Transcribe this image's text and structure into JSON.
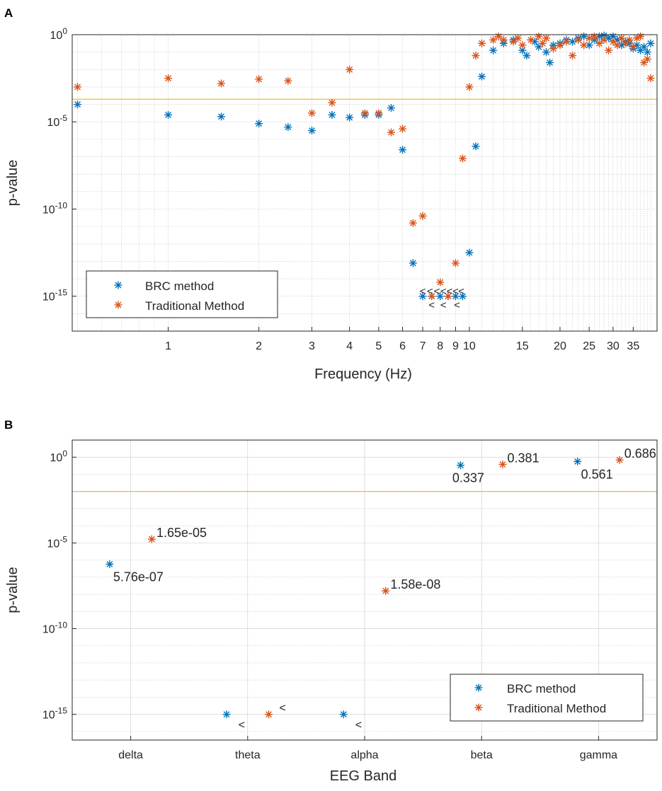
{
  "panel_labels": {
    "a": "A",
    "b": "B"
  },
  "colors": {
    "brc": "#0072BD",
    "traditional": "#D95319",
    "threshold": "#EDB120",
    "axis": "#262626",
    "grid": "#c8c8c8"
  },
  "legend_marker": "*",
  "chart_data": [
    {
      "id": "A",
      "type": "scatter",
      "xscale": "log",
      "yscale": "log",
      "xlim": [
        0.48,
        42
      ],
      "ylim_exp": [
        -17,
        0
      ],
      "grid": true,
      "xlabel": "Frequency (Hz)",
      "ylabel": "p-value",
      "x_ticks": [
        1,
        2,
        3,
        4,
        5,
        6,
        7,
        8,
        9,
        10,
        15,
        20,
        25,
        30,
        35
      ],
      "x_tick_labels": [
        "1",
        "2",
        "3",
        "4",
        "5",
        "6",
        "7",
        "8",
        "9",
        "10",
        "15",
        "20",
        "25",
        "30",
        "35"
      ],
      "y_ticks": [
        {
          "exp": 0,
          "base": "10",
          "sup": "0"
        },
        {
          "exp": -5,
          "base": "10",
          "sup": "-5"
        },
        {
          "exp": -10,
          "base": "10",
          "sup": "-10"
        },
        {
          "exp": -15,
          "base": "10",
          "sup": "-15"
        }
      ],
      "threshold_exp": -3.7,
      "legend": {
        "position": "bottom-left",
        "entries": [
          "BRC method",
          "Traditional Method"
        ]
      },
      "series": [
        {
          "name": "BRC method",
          "points": [
            [
              0.5,
              -4.0
            ],
            [
              1.0,
              -4.6
            ],
            [
              1.5,
              -4.7
            ],
            [
              2.0,
              -5.1
            ],
            [
              2.5,
              -5.3
            ],
            [
              3.0,
              -5.5
            ],
            [
              3.5,
              -4.6
            ],
            [
              4.0,
              -4.75
            ],
            [
              4.5,
              -4.6
            ],
            [
              5.0,
              -4.6
            ],
            [
              5.5,
              -4.2
            ],
            [
              6.0,
              -6.6
            ],
            [
              6.5,
              -13.1
            ],
            [
              7.0,
              -15.0
            ],
            [
              7.5,
              -15.0
            ],
            [
              8.0,
              -15.0
            ],
            [
              8.5,
              -15.0
            ],
            [
              9.0,
              -15.0
            ],
            [
              9.5,
              -15.0
            ],
            [
              10.0,
              -12.5
            ],
            [
              10.5,
              -6.4
            ],
            [
              11.0,
              -2.4
            ],
            [
              12.0,
              -0.9
            ],
            [
              13.0,
              -0.5
            ],
            [
              14.0,
              -0.3
            ],
            [
              15.0,
              -0.9
            ],
            [
              15.5,
              -1.2
            ],
            [
              16.5,
              -0.4
            ],
            [
              17.0,
              -0.7
            ],
            [
              18.0,
              -1.0
            ],
            [
              18.5,
              -1.6
            ],
            [
              19.0,
              -0.6
            ],
            [
              20.0,
              -0.5
            ],
            [
              21.0,
              -0.3
            ],
            [
              22.0,
              -0.4
            ],
            [
              23.0,
              -0.2
            ],
            [
              24.0,
              -0.1
            ],
            [
              25.0,
              -0.6
            ],
            [
              26.0,
              -0.3
            ],
            [
              27.0,
              -0.1
            ],
            [
              28.0,
              -0.05
            ],
            [
              29.0,
              -0.2
            ],
            [
              30.0,
              -0.1
            ],
            [
              31.0,
              -0.3
            ],
            [
              32.0,
              -0.6
            ],
            [
              33.0,
              -0.4
            ],
            [
              34.0,
              -0.5
            ],
            [
              35.0,
              -0.8
            ],
            [
              36.0,
              -0.6
            ],
            [
              37.0,
              -0.9
            ],
            [
              38.0,
              -0.7
            ],
            [
              39.0,
              -1.0
            ],
            [
              40.0,
              -0.5
            ]
          ]
        },
        {
          "name": "Traditional Method",
          "points": [
            [
              0.5,
              -3.0
            ],
            [
              1.0,
              -2.5
            ],
            [
              1.5,
              -2.8
            ],
            [
              2.0,
              -2.55
            ],
            [
              2.5,
              -2.65
            ],
            [
              3.0,
              -4.5
            ],
            [
              3.5,
              -3.9
            ],
            [
              4.0,
              -2.0
            ],
            [
              4.5,
              -4.5
            ],
            [
              5.0,
              -4.5
            ],
            [
              5.5,
              -5.6
            ],
            [
              6.0,
              -5.4
            ],
            [
              6.5,
              -10.8
            ],
            [
              7.0,
              -10.4
            ],
            [
              7.5,
              -15.0
            ],
            [
              8.0,
              -14.2
            ],
            [
              8.5,
              -15.0
            ],
            [
              9.0,
              -13.1
            ],
            [
              9.5,
              -7.1
            ],
            [
              10.0,
              -3.0
            ],
            [
              10.5,
              -1.2
            ],
            [
              11.0,
              -0.5
            ],
            [
              12.0,
              -0.3
            ],
            [
              12.5,
              -0.1
            ],
            [
              13.0,
              -0.3
            ],
            [
              14.0,
              -0.4
            ],
            [
              14.5,
              -0.2
            ],
            [
              15.0,
              -0.6
            ],
            [
              16.0,
              -0.3
            ],
            [
              17.0,
              -0.1
            ],
            [
              17.5,
              -0.5
            ],
            [
              18.0,
              -0.2
            ],
            [
              19.0,
              -0.8
            ],
            [
              20.0,
              -0.6
            ],
            [
              21.0,
              -0.4
            ],
            [
              22.0,
              -1.2
            ],
            [
              23.0,
              -0.3
            ],
            [
              24.0,
              -0.6
            ],
            [
              25.0,
              -0.2
            ],
            [
              26.0,
              -0.1
            ],
            [
              27.0,
              -0.5
            ],
            [
              28.0,
              -0.3
            ],
            [
              29.0,
              -0.9
            ],
            [
              30.0,
              -0.4
            ],
            [
              31.0,
              -0.6
            ],
            [
              32.0,
              -0.2
            ],
            [
              33.0,
              -0.5
            ],
            [
              34.0,
              -0.3
            ],
            [
              35.0,
              -0.7
            ],
            [
              36.0,
              -0.2
            ],
            [
              37.0,
              -0.1
            ],
            [
              38.0,
              -1.6
            ],
            [
              39.0,
              -1.4
            ],
            [
              40.0,
              -2.5
            ]
          ]
        }
      ],
      "annotations": [
        {
          "text": "<",
          "x": 7.0,
          "exp": -14.7
        },
        {
          "text": "<",
          "x": 7.4,
          "exp": -14.7
        },
        {
          "text": "<",
          "x": 7.8,
          "exp": -14.7
        },
        {
          "text": "<",
          "x": 8.2,
          "exp": -14.7
        },
        {
          "text": "<",
          "x": 8.6,
          "exp": -14.7
        },
        {
          "text": "<",
          "x": 9.0,
          "exp": -14.7
        },
        {
          "text": "<",
          "x": 9.4,
          "exp": -14.7
        },
        {
          "text": "<",
          "x": 7.5,
          "exp": -15.5
        },
        {
          "text": "<",
          "x": 8.2,
          "exp": -15.5
        },
        {
          "text": "<",
          "x": 9.1,
          "exp": -15.5
        }
      ]
    },
    {
      "id": "B",
      "type": "scatter",
      "yscale": "log",
      "ylim_exp": [
        -16.5,
        1.0
      ],
      "grid": true,
      "xlabel": "EEG Band",
      "ylabel": "p-value",
      "categories": [
        "delta",
        "theta",
        "alpha",
        "beta",
        "gamma"
      ],
      "y_ticks": [
        {
          "exp": 0,
          "base": "10",
          "sup": "0"
        },
        {
          "exp": -5,
          "base": "10",
          "sup": "-5"
        },
        {
          "exp": -10,
          "base": "10",
          "sup": "-10"
        },
        {
          "exp": -15,
          "base": "10",
          "sup": "-15"
        }
      ],
      "threshold_exp": -2.0,
      "legend": {
        "position": "bottom-right",
        "entries": [
          "BRC method",
          "Traditional Method"
        ]
      },
      "series": [
        {
          "name": "BRC method",
          "offset": -0.18,
          "exp": [
            -6.24,
            -15.0,
            -15.0,
            -0.47,
            -0.25
          ]
        },
        {
          "name": "Traditional Method",
          "offset": 0.18,
          "exp": [
            -4.78,
            -15.0,
            -7.8,
            -0.42,
            -0.16
          ]
        }
      ],
      "data_labels": [
        {
          "text": "5.76e-07",
          "cat": 0,
          "dx": -0.15,
          "exp": -6.24,
          "dir": "below"
        },
        {
          "text": "1.65e-05",
          "cat": 0,
          "dx": 0.22,
          "exp": -4.78,
          "dir": "above"
        },
        {
          "text": "<",
          "cat": 1,
          "dx": -0.08,
          "exp": -15.0,
          "dir": "below-small"
        },
        {
          "text": "<",
          "cat": 1,
          "dx": 0.27,
          "exp": -15.0,
          "dir": "above-small"
        },
        {
          "text": "<",
          "cat": 2,
          "dx": -0.08,
          "exp": -15.0,
          "dir": "below-small"
        },
        {
          "text": "1.58e-08",
          "cat": 2,
          "dx": 0.22,
          "exp": -7.8,
          "dir": "above"
        },
        {
          "text": "0.337",
          "cat": 3,
          "dx": -0.25,
          "exp": -0.47,
          "dir": "below"
        },
        {
          "text": "0.381",
          "cat": 3,
          "dx": 0.22,
          "exp": -0.42,
          "dir": "above"
        },
        {
          "text": "0.561",
          "cat": 4,
          "dx": -0.15,
          "exp": -0.25,
          "dir": "below"
        },
        {
          "text": "0.686",
          "cat": 4,
          "dx": 0.22,
          "exp": -0.16,
          "dir": "above"
        }
      ]
    }
  ]
}
